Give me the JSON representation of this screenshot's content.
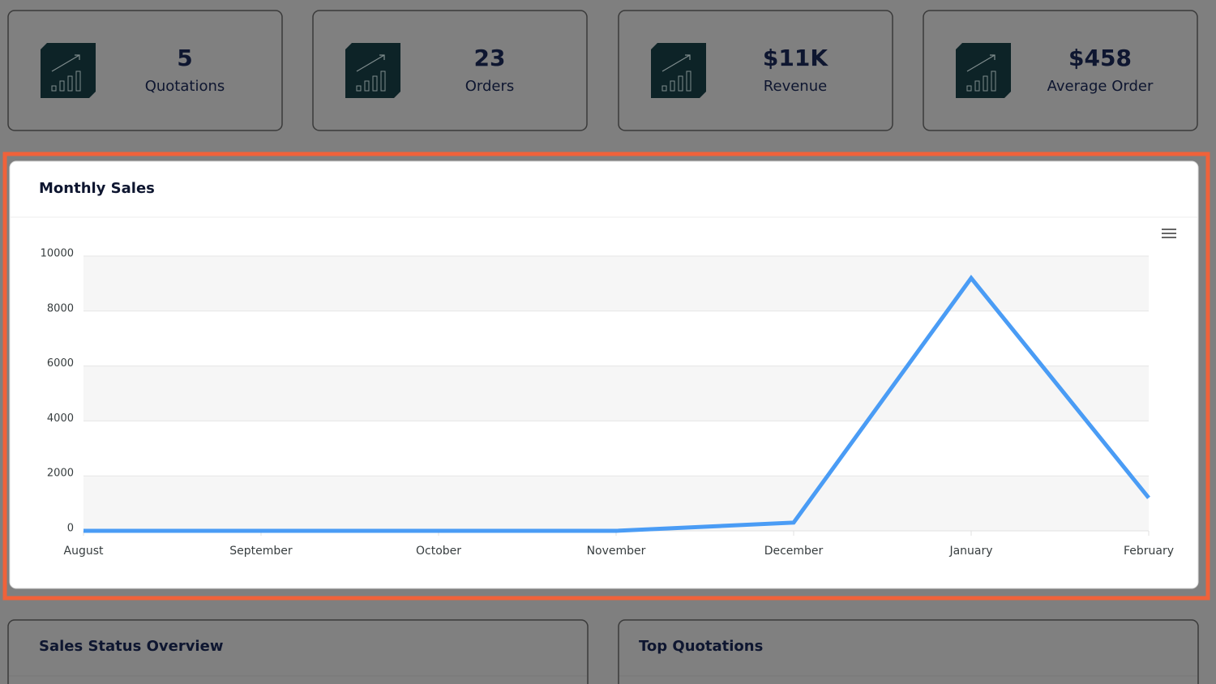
{
  "stats": [
    {
      "value": "5",
      "label": "Quotations"
    },
    {
      "value": "23",
      "label": "Orders"
    },
    {
      "value": "$11K",
      "label": "Revenue"
    },
    {
      "value": "$458",
      "label": "Average Order"
    }
  ],
  "chart_data": {
    "type": "line",
    "title": "Monthly Sales",
    "categories": [
      "August",
      "September",
      "October",
      "November",
      "December",
      "January",
      "February"
    ],
    "values": [
      0,
      0,
      0,
      0,
      300,
      9200,
      1200
    ],
    "color": "#4a9cf5",
    "ylim": [
      0,
      10000
    ],
    "yticks": [
      0,
      2000,
      4000,
      6000,
      8000,
      10000
    ],
    "grid": true
  },
  "panels": [
    "Sales Status Overview",
    "Top Quotations"
  ]
}
